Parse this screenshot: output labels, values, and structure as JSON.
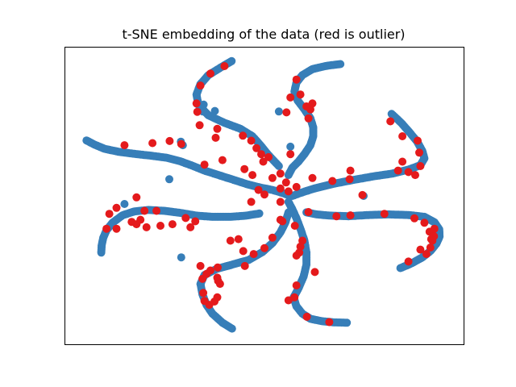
{
  "chart_data": {
    "type": "scatter",
    "title": "t-SNE embedding of the data (red is outlier)",
    "xlabel": "",
    "ylabel": "",
    "axes_visible": false,
    "ticks_visible": false,
    "grid": false,
    "legend": "none",
    "colors": {
      "inlier": "#377eb8",
      "outlier": "#e41a1c"
    },
    "xlim": [
      0,
      100
    ],
    "ylim": [
      0,
      100
    ],
    "series": [
      {
        "color": "inlier",
        "arms": [
          [
            [
              41.8,
              95.2
            ],
            [
              39,
              93
            ],
            [
              36,
              90.5
            ],
            [
              34,
              87.5
            ],
            [
              33,
              84
            ],
            [
              33.5,
              80.5
            ],
            [
              36,
              77
            ],
            [
              40,
              74.5
            ],
            [
              44,
              72.5
            ],
            [
              47,
              70
            ],
            [
              49,
              67
            ],
            [
              50.8,
              64
            ],
            [
              53.6,
              60
            ]
          ],
          [
            [
              69,
              94.2
            ],
            [
              65.5,
              93.6
            ],
            [
              62,
              92.5
            ],
            [
              59.5,
              90.5
            ],
            [
              58,
              88
            ],
            [
              57.5,
              85
            ],
            [
              58.3,
              82
            ],
            [
              60,
              79
            ],
            [
              61.5,
              76
            ],
            [
              62.2,
              73
            ],
            [
              62.2,
              70
            ],
            [
              61.5,
              67
            ],
            [
              60,
              64
            ],
            [
              58.5,
              61.5
            ],
            [
              57,
              59.5
            ],
            [
              56,
              57
            ]
          ],
          [
            [
              81.8,
              77.5
            ],
            [
              84.2,
              74.5
            ],
            [
              86.3,
              71.3
            ],
            [
              88.2,
              68.2
            ],
            [
              89.5,
              65
            ],
            [
              90,
              62.6
            ],
            [
              89,
              60.3
            ],
            [
              86,
              58.8
            ],
            [
              82,
              57.5
            ],
            [
              77,
              56.5
            ],
            [
              72,
              55.3
            ],
            [
              67,
              54
            ],
            [
              62.5,
              52.5
            ],
            [
              59,
              51
            ],
            [
              57,
              50
            ]
          ],
          [
            [
              84,
              25.8
            ],
            [
              86.8,
              27.4
            ],
            [
              89.5,
              29.4
            ],
            [
              91.5,
              31.5
            ],
            [
              93,
              34
            ],
            [
              93.8,
              36.4
            ],
            [
              93.7,
              38.8
            ],
            [
              92.5,
              41.2
            ],
            [
              90,
              43
            ],
            [
              86,
              43.6
            ],
            [
              81,
              43.8
            ],
            [
              76,
              43.6
            ],
            [
              71,
              43.2
            ],
            [
              66.5,
              43.4
            ],
            [
              63,
              43.8
            ],
            [
              60.5,
              44.5
            ]
          ],
          [
            [
              70.6,
              7.5
            ],
            [
              67.5,
              7.6
            ],
            [
              64.4,
              8
            ],
            [
              61.5,
              8.8
            ],
            [
              59.5,
              10.5
            ],
            [
              58,
              13
            ],
            [
              57.3,
              16
            ],
            [
              58.5,
              19
            ],
            [
              59.8,
              23
            ],
            [
              60.5,
              27
            ],
            [
              60.5,
              31
            ],
            [
              60,
              35
            ],
            [
              59,
              39
            ],
            [
              58,
              42.5
            ],
            [
              57,
              45.5
            ],
            [
              56,
              48
            ]
          ],
          [
            [
              41.9,
              5.5
            ],
            [
              39.5,
              7.5
            ],
            [
              37,
              10.5
            ],
            [
              35.5,
              13.5
            ],
            [
              34.5,
              17
            ],
            [
              34,
              20.5
            ],
            [
              35,
              23.5
            ],
            [
              38,
              25.5
            ],
            [
              42,
              27
            ],
            [
              46,
              28.5
            ],
            [
              49.5,
              31.2
            ],
            [
              52,
              34.2
            ],
            [
              54,
              37.8
            ],
            [
              55.2,
              41
            ],
            [
              56,
              44.5
            ]
          ],
          [
            [
              9.2,
              31
            ],
            [
              9.3,
              33.5
            ],
            [
              9.7,
              36
            ],
            [
              10.5,
              38.5
            ],
            [
              12,
              41
            ],
            [
              14.5,
              43.5
            ],
            [
              17.5,
              44.8
            ],
            [
              21,
              45.3
            ],
            [
              25,
              45
            ],
            [
              29,
              44.3
            ],
            [
              33,
              43.4
            ],
            [
              37,
              43
            ],
            [
              41.5,
              43
            ],
            [
              45.5,
              43.4
            ],
            [
              48.7,
              44.1
            ]
          ],
          [
            [
              5.5,
              68.6
            ],
            [
              7.5,
              67.2
            ],
            [
              10,
              65.8
            ],
            [
              13.5,
              64.8
            ],
            [
              17.5,
              64.1
            ],
            [
              21.5,
              63.5
            ],
            [
              25.5,
              62.8
            ],
            [
              29,
              61.6
            ],
            [
              32,
              60.1
            ],
            [
              35,
              58.5
            ],
            [
              38.5,
              57
            ],
            [
              42,
              55.5
            ],
            [
              45.5,
              54
            ],
            [
              49,
              52.8
            ],
            [
              52,
              52
            ],
            [
              54.5,
              51
            ],
            [
              56.5,
              50
            ]
          ]
        ],
        "isolated_points": [
          [
            26.2,
            55.6
          ],
          [
            29.6,
            67
          ],
          [
            29.1,
            68.2
          ],
          [
            34.6,
            78.3
          ],
          [
            34.8,
            80.6
          ],
          [
            37.6,
            78.5
          ],
          [
            53.6,
            78.3
          ],
          [
            56.5,
            66.5
          ],
          [
            74.8,
            50
          ],
          [
            29.2,
            29.4
          ],
          [
            15,
            47.3
          ]
        ]
      },
      {
        "color": "outlier",
        "points": [
          [
            34,
            87
          ],
          [
            36.5,
            91
          ],
          [
            40,
            93.5
          ],
          [
            33,
            81
          ],
          [
            33.8,
            73.7
          ],
          [
            38.2,
            72.5
          ],
          [
            44.6,
            70.2
          ],
          [
            46.7,
            68.5
          ],
          [
            48,
            66
          ],
          [
            51,
            63
          ],
          [
            37.8,
            69.5
          ],
          [
            33.2,
            78.2
          ],
          [
            58,
            89
          ],
          [
            59,
            84
          ],
          [
            60.5,
            80
          ],
          [
            62,
            81
          ],
          [
            61.5,
            79
          ],
          [
            55.5,
            78
          ],
          [
            56.5,
            83
          ],
          [
            61,
            76
          ],
          [
            56.5,
            64
          ],
          [
            54,
            57.5
          ],
          [
            81.5,
            75
          ],
          [
            84.5,
            70
          ],
          [
            88.3,
            68.5
          ],
          [
            88.7,
            64.5
          ],
          [
            89,
            60
          ],
          [
            84.5,
            61.5
          ],
          [
            83.4,
            58.5
          ],
          [
            87.7,
            57
          ],
          [
            71.5,
            58.5
          ],
          [
            71.3,
            55.6
          ],
          [
            67,
            55
          ],
          [
            58,
            53
          ],
          [
            74.5,
            50.3
          ],
          [
            86,
            58
          ],
          [
            91.5,
            32.7
          ],
          [
            91.7,
            35.5
          ],
          [
            91.3,
            38
          ],
          [
            92,
            35
          ],
          [
            92.4,
            36.5
          ],
          [
            90.5,
            30.5
          ],
          [
            89,
            32
          ],
          [
            86,
            28
          ],
          [
            92.5,
            39
          ],
          [
            90,
            41
          ],
          [
            87.5,
            42.5
          ],
          [
            80,
            44
          ],
          [
            71.5,
            43.5
          ],
          [
            68,
            43.2
          ],
          [
            61,
            44.6
          ],
          [
            59.5,
            35
          ],
          [
            59,
            33
          ],
          [
            58,
            30
          ],
          [
            58,
            20
          ],
          [
            57.5,
            16
          ],
          [
            56,
            15
          ],
          [
            62.6,
            24.5
          ],
          [
            60.6,
            9.5
          ],
          [
            66.2,
            7.7
          ],
          [
            54.5,
            41.5
          ],
          [
            62,
            56
          ],
          [
            38.9,
            20.5
          ],
          [
            38.4,
            21.5
          ],
          [
            34.7,
            17.5
          ],
          [
            35,
            14.8
          ],
          [
            36.2,
            13.5
          ],
          [
            37.5,
            14.6
          ],
          [
            38.2,
            16
          ],
          [
            38.2,
            22.6
          ],
          [
            34.5,
            22.2
          ],
          [
            35.5,
            23.8
          ],
          [
            36.5,
            25
          ],
          [
            34,
            26.5
          ],
          [
            38.3,
            26
          ],
          [
            47.3,
            30.5
          ],
          [
            50,
            32.5
          ],
          [
            44.7,
            31.5
          ],
          [
            41.5,
            35
          ],
          [
            43.5,
            35.5
          ],
          [
            45.1,
            26.5
          ],
          [
            58.7,
            31
          ],
          [
            57.6,
            40
          ],
          [
            52,
            36
          ],
          [
            54,
            42
          ],
          [
            10.5,
            39
          ],
          [
            13,
            39
          ],
          [
            16.8,
            41.3
          ],
          [
            19,
            42
          ],
          [
            20.5,
            39.5
          ],
          [
            24,
            40
          ],
          [
            27,
            40.5
          ],
          [
            31.5,
            39.5
          ],
          [
            32.7,
            41.5
          ],
          [
            30.3,
            42.6
          ],
          [
            23,
            45
          ],
          [
            20,
            45
          ],
          [
            18,
            40.5
          ],
          [
            13,
            46
          ],
          [
            11.2,
            44
          ],
          [
            29.2,
            67.4
          ],
          [
            26.3,
            68.4
          ],
          [
            22,
            67.7
          ],
          [
            15,
            67
          ],
          [
            35,
            60.5
          ],
          [
            39.5,
            62
          ],
          [
            45,
            59
          ],
          [
            47,
            57
          ],
          [
            49.7,
            61.5
          ],
          [
            49.2,
            64
          ],
          [
            52,
            56
          ],
          [
            54,
            52.5
          ],
          [
            50,
            50.5
          ],
          [
            46.7,
            48
          ],
          [
            56,
            51.5
          ],
          [
            48.5,
            52
          ],
          [
            55.4,
            54.5
          ],
          [
            54,
            48
          ],
          [
            18,
            49.5
          ]
        ]
      }
    ]
  }
}
